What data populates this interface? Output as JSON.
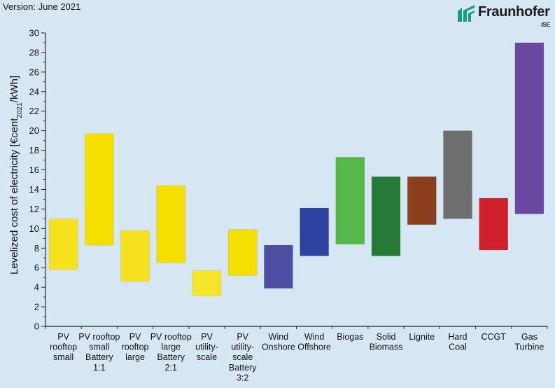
{
  "version_label": "Version: June 2021",
  "logo": {
    "name": "Fraunhofer",
    "sub": "ISE",
    "color": "#179c7d"
  },
  "chart_data": {
    "type": "bar",
    "subtype": "floating-range",
    "ylabel_parts": [
      "Levelized cost of electricity [€cent",
      "2021",
      "/kWh]"
    ],
    "ylim": [
      0,
      30
    ],
    "ytick_step": 2,
    "yticks": [
      "0",
      "2",
      "4",
      "6",
      "8",
      "10",
      "12",
      "14",
      "16",
      "18",
      "20",
      "22",
      "24",
      "26",
      "28",
      "30"
    ],
    "grid": false,
    "categories": [
      {
        "label_lines": [
          "PV",
          "rooftop",
          "small"
        ],
        "low": 5.8,
        "high": 11.0,
        "color": "#f6e11e"
      },
      {
        "label_lines": [
          "PV rooftop",
          "small",
          "Battery",
          "1:1"
        ],
        "low": 8.3,
        "high": 19.7,
        "color": "#f4df00"
      },
      {
        "label_lines": [
          "PV",
          "rooftop",
          "large"
        ],
        "low": 4.6,
        "high": 9.8,
        "color": "#f6e11e"
      },
      {
        "label_lines": [
          "PV rooftop",
          "large",
          "Battery",
          "2:1"
        ],
        "low": 6.5,
        "high": 14.4,
        "color": "#f4df00"
      },
      {
        "label_lines": [
          "PV",
          "utility-",
          "scale"
        ],
        "low": 3.1,
        "high": 5.7,
        "color": "#f7e52a"
      },
      {
        "label_lines": [
          "PV",
          "utility-",
          "scale",
          "Battery",
          "3:2"
        ],
        "low": 5.2,
        "high": 9.9,
        "color": "#f4df00"
      },
      {
        "label_lines": [
          "Wind",
          "Onshore"
        ],
        "low": 3.9,
        "high": 8.3,
        "color": "#4d4ea1"
      },
      {
        "label_lines": [
          "Wind",
          "Offshore"
        ],
        "low": 7.2,
        "high": 12.1,
        "color": "#2e43a0"
      },
      {
        "label_lines": [
          "Biogas"
        ],
        "low": 8.4,
        "high": 17.3,
        "color": "#56b84a"
      },
      {
        "label_lines": [
          "Solid",
          "Biomass"
        ],
        "low": 7.2,
        "high": 15.3,
        "color": "#267a38"
      },
      {
        "label_lines": [
          "Lignite"
        ],
        "low": 10.4,
        "high": 15.3,
        "color": "#8b3f1c"
      },
      {
        "label_lines": [
          "Hard",
          "Coal"
        ],
        "low": 11.0,
        "high": 20.0,
        "color": "#6e6e6e"
      },
      {
        "label_lines": [
          "CCGT"
        ],
        "low": 7.8,
        "high": 13.1,
        "color": "#d0202b"
      },
      {
        "label_lines": [
          "Gas",
          "Turbine"
        ],
        "low": 11.5,
        "high": 29.0,
        "color": "#6a47a0"
      }
    ]
  }
}
